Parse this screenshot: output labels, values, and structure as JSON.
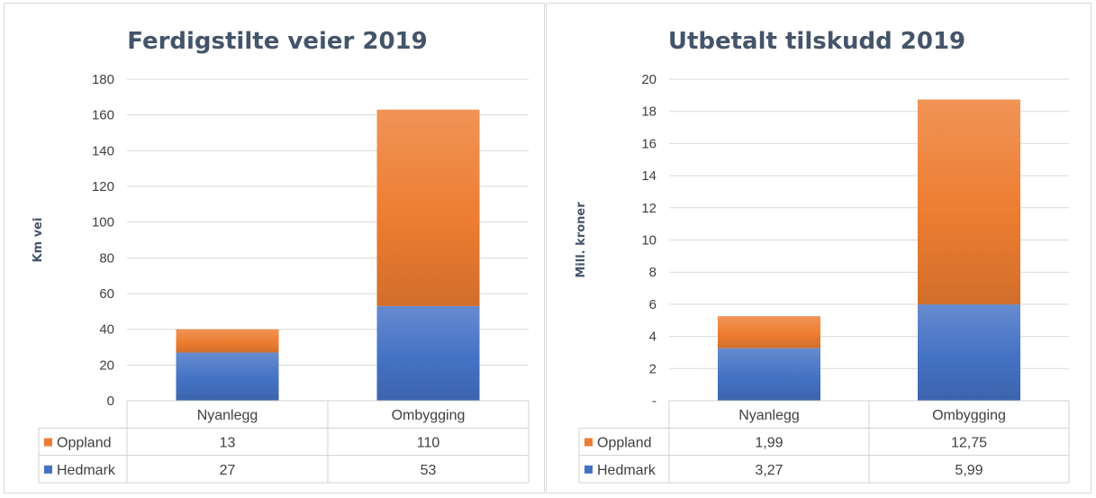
{
  "chart_data": [
    {
      "type": "bar",
      "stacked": true,
      "title": "Ferdigstilte veier 2019",
      "ylabel": "Km vei",
      "ylim": [
        0,
        180
      ],
      "yticks": [
        0,
        20,
        40,
        60,
        80,
        100,
        120,
        140,
        160,
        180
      ],
      "ytick_labels": [
        "0",
        "20",
        "40",
        "60",
        "80",
        "100",
        "120",
        "140",
        "160",
        "180"
      ],
      "categories": [
        "Nyanlegg",
        "Ombygging"
      ],
      "series": [
        {
          "name": "Hedmark",
          "values": [
            27,
            53
          ],
          "labels": [
            "27",
            "53"
          ],
          "color": "#4472c4"
        },
        {
          "name": "Oppland",
          "values": [
            13,
            110
          ],
          "labels": [
            "13",
            "110"
          ],
          "color": "#ed7d31"
        }
      ],
      "grid": true,
      "legend": "data-table"
    },
    {
      "type": "bar",
      "stacked": true,
      "title": "Utbetalt tilskudd 2019",
      "ylabel": "Mill. kroner",
      "ylim": [
        0,
        20
      ],
      "yticks": [
        0,
        2,
        4,
        6,
        8,
        10,
        12,
        14,
        16,
        18,
        20
      ],
      "ytick_labels": [
        "-",
        "2",
        "4",
        "6",
        "8",
        "10",
        "12",
        "14",
        "16",
        "18",
        "20"
      ],
      "categories": [
        "Nyanlegg",
        "Ombygging"
      ],
      "series": [
        {
          "name": "Hedmark",
          "values": [
            3.27,
            5.99
          ],
          "labels": [
            "3,27",
            "5,99"
          ],
          "color": "#4472c4"
        },
        {
          "name": "Oppland",
          "values": [
            1.99,
            12.75
          ],
          "labels": [
            "1,99",
            "12,75"
          ],
          "color": "#ed7d31"
        }
      ],
      "grid": true,
      "legend": "data-table"
    }
  ]
}
